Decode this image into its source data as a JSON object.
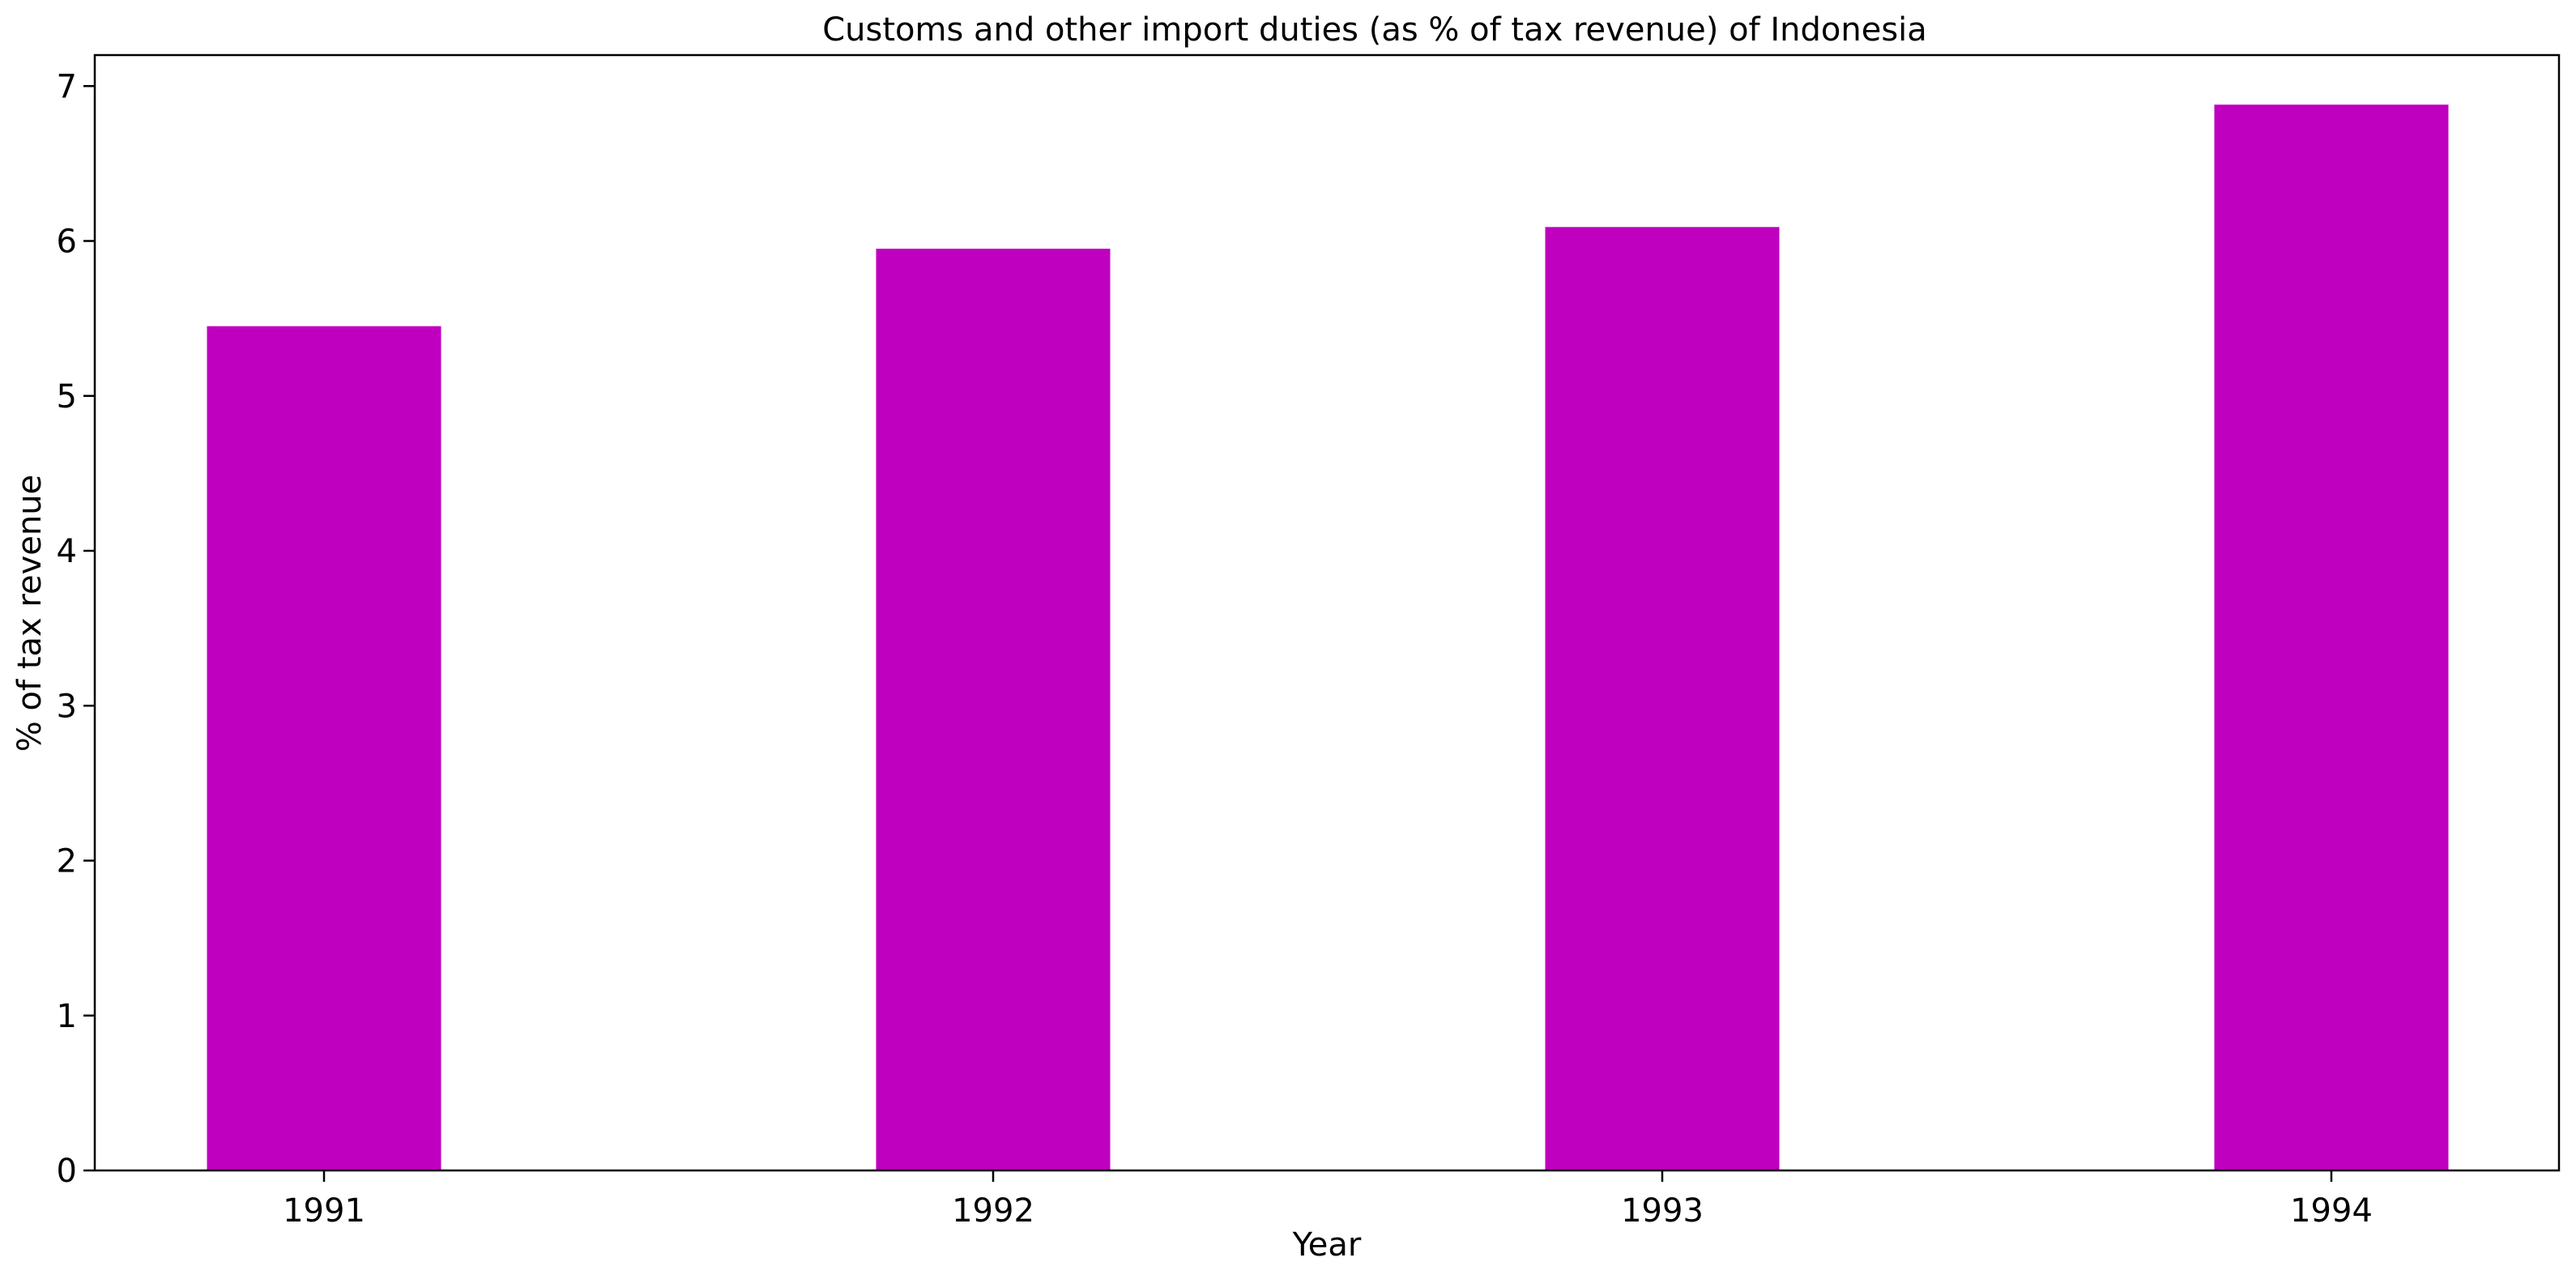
{
  "chart_data": {
    "type": "bar",
    "title": "Customs and other import duties (as % of tax revenue) of Indonesia",
    "xlabel": "Year",
    "ylabel": "% of tax revenue",
    "categories": [
      "1991",
      "1992",
      "1993",
      "1994"
    ],
    "values": [
      5.45,
      5.95,
      6.09,
      6.88
    ],
    "ylim": [
      0,
      7.2
    ],
    "yticks": [
      "0",
      "1",
      "2",
      "3",
      "4",
      "5",
      "6",
      "7"
    ],
    "bar_color": "#bf00bf",
    "grid": false,
    "legend": "none"
  }
}
